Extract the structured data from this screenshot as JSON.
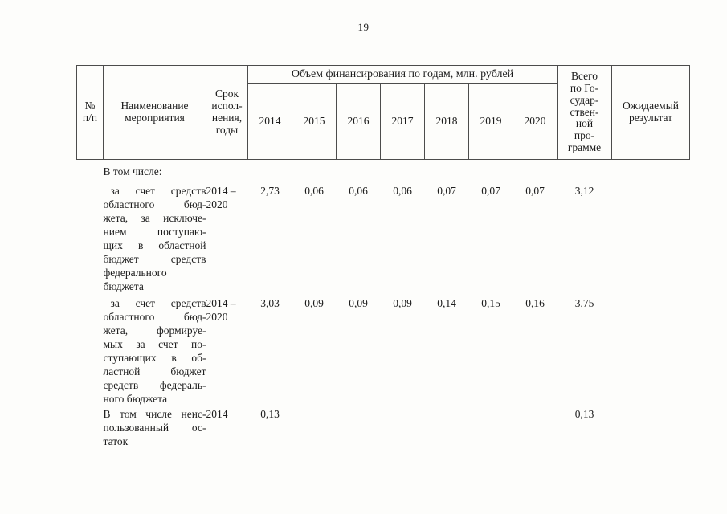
{
  "page": {
    "number": "19"
  },
  "table": {
    "header": {
      "num": "№\nп/п",
      "name": "Наименование\nмероприятия",
      "term": "Срок\nиспол-\nнения,\nгоды",
      "funding_group": "Объем финансирования по годам, млн. рублей",
      "years": [
        "2014",
        "2015",
        "2016",
        "2017",
        "2018",
        "2019",
        "2020"
      ],
      "total": "Всего\nпо Го-\nсудар-\nствен-\nной\nпро-\nграмме",
      "result": "Ожидаемый\nрезультат"
    },
    "rows": [
      {
        "name_lines": [
          "В том числе:"
        ],
        "indent": false,
        "term": "",
        "values": [
          "",
          "",
          "",
          "",
          "",
          "",
          ""
        ],
        "total": "",
        "result": ""
      },
      {
        "name_lines": [
          "за счет средств",
          "областного бюд-",
          "жета, за исключе-",
          "нием поступаю-",
          "щих в областной",
          "бюджет средств",
          "федерального",
          "бюджета"
        ],
        "indent": true,
        "term": "2014 –\n2020",
        "values": [
          "2,73",
          "0,06",
          "0,06",
          "0,06",
          "0,07",
          "0,07",
          "0,07"
        ],
        "total": "3,12",
        "result": ""
      },
      {
        "name_lines": [
          "за счет средств",
          "областного бюд-",
          "жета, формируе-",
          "мых за счет по-",
          "ступающих в об-",
          "ластной бюджет",
          "средств федераль-",
          "ного бюджета"
        ],
        "indent": true,
        "term": "2014 –\n2020",
        "values": [
          "3,03",
          "0,09",
          "0,09",
          "0,09",
          "0,14",
          "0,15",
          "0,16"
        ],
        "total": "3,75",
        "result": ""
      },
      {
        "name_lines": [
          "В том числе неис-",
          "пользованный ос-",
          "таток"
        ],
        "indent": false,
        "term": "2014",
        "values": [
          "0,13",
          "",
          "",
          "",
          "",
          "",
          ""
        ],
        "total": "0,13",
        "result": ""
      }
    ]
  }
}
